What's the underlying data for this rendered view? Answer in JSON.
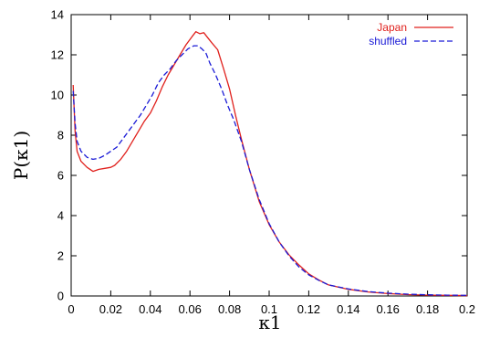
{
  "chart_data": {
    "type": "line",
    "title": "",
    "xlabel": "κ1",
    "ylabel": "P(κ1)",
    "xlim": [
      0,
      0.2
    ],
    "ylim": [
      0,
      14
    ],
    "xticks": [
      "0",
      "0.02",
      "0.04",
      "0.06",
      "0.08",
      "0.1",
      "0.12",
      "0.14",
      "0.16",
      "0.18",
      "0.2"
    ],
    "yticks": [
      "0",
      "2",
      "4",
      "6",
      "8",
      "10",
      "12",
      "14"
    ],
    "grid": false,
    "legend_position": "top-right",
    "series": [
      {
        "name": "Japan",
        "color": "#e0201c",
        "dash": "solid",
        "x": [
          0.001,
          0.002,
          0.003,
          0.005,
          0.008,
          0.011,
          0.014,
          0.017,
          0.02,
          0.022,
          0.025,
          0.028,
          0.031,
          0.034,
          0.037,
          0.04,
          0.043,
          0.046,
          0.049,
          0.052,
          0.055,
          0.058,
          0.061,
          0.063,
          0.065,
          0.067,
          0.069,
          0.071,
          0.074,
          0.077,
          0.08,
          0.083,
          0.086,
          0.09,
          0.095,
          0.1,
          0.105,
          0.11,
          0.115,
          0.12,
          0.125,
          0.13,
          0.14,
          0.15,
          0.16,
          0.17,
          0.18,
          0.19,
          0.2
        ],
        "y": [
          10.5,
          8.2,
          7.2,
          6.7,
          6.4,
          6.2,
          6.3,
          6.35,
          6.4,
          6.5,
          6.8,
          7.2,
          7.7,
          8.2,
          8.7,
          9.1,
          9.7,
          10.4,
          11.0,
          11.5,
          12.0,
          12.5,
          12.9,
          13.15,
          13.05,
          13.1,
          12.85,
          12.6,
          12.25,
          11.3,
          10.3,
          9.0,
          7.8,
          6.3,
          4.7,
          3.55,
          2.7,
          2.05,
          1.55,
          1.1,
          0.8,
          0.55,
          0.33,
          0.2,
          0.12,
          0.07,
          0.04,
          0.03,
          0.02
        ]
      },
      {
        "name": "shuffled",
        "color": "#1a1ad6",
        "dash": "dashed",
        "x": [
          0.001,
          0.002,
          0.003,
          0.005,
          0.008,
          0.011,
          0.014,
          0.017,
          0.02,
          0.023,
          0.026,
          0.029,
          0.032,
          0.035,
          0.038,
          0.041,
          0.044,
          0.047,
          0.05,
          0.053,
          0.056,
          0.059,
          0.062,
          0.064,
          0.066,
          0.068,
          0.07,
          0.073,
          0.076,
          0.079,
          0.082,
          0.086,
          0.09,
          0.095,
          0.1,
          0.105,
          0.11,
          0.115,
          0.12,
          0.125,
          0.13,
          0.14,
          0.15,
          0.16,
          0.17,
          0.18,
          0.19,
          0.2
        ],
        "y": [
          10.2,
          8.6,
          7.7,
          7.2,
          6.9,
          6.8,
          6.85,
          7.0,
          7.2,
          7.4,
          7.8,
          8.2,
          8.6,
          9.0,
          9.5,
          10.0,
          10.6,
          11.0,
          11.3,
          11.7,
          12.0,
          12.3,
          12.45,
          12.45,
          12.3,
          12.1,
          11.6,
          11.0,
          10.3,
          9.5,
          8.8,
          7.7,
          6.3,
          4.8,
          3.6,
          2.7,
          2.0,
          1.45,
          1.05,
          0.78,
          0.55,
          0.35,
          0.22,
          0.14,
          0.09,
          0.06,
          0.04,
          0.03
        ]
      }
    ]
  }
}
